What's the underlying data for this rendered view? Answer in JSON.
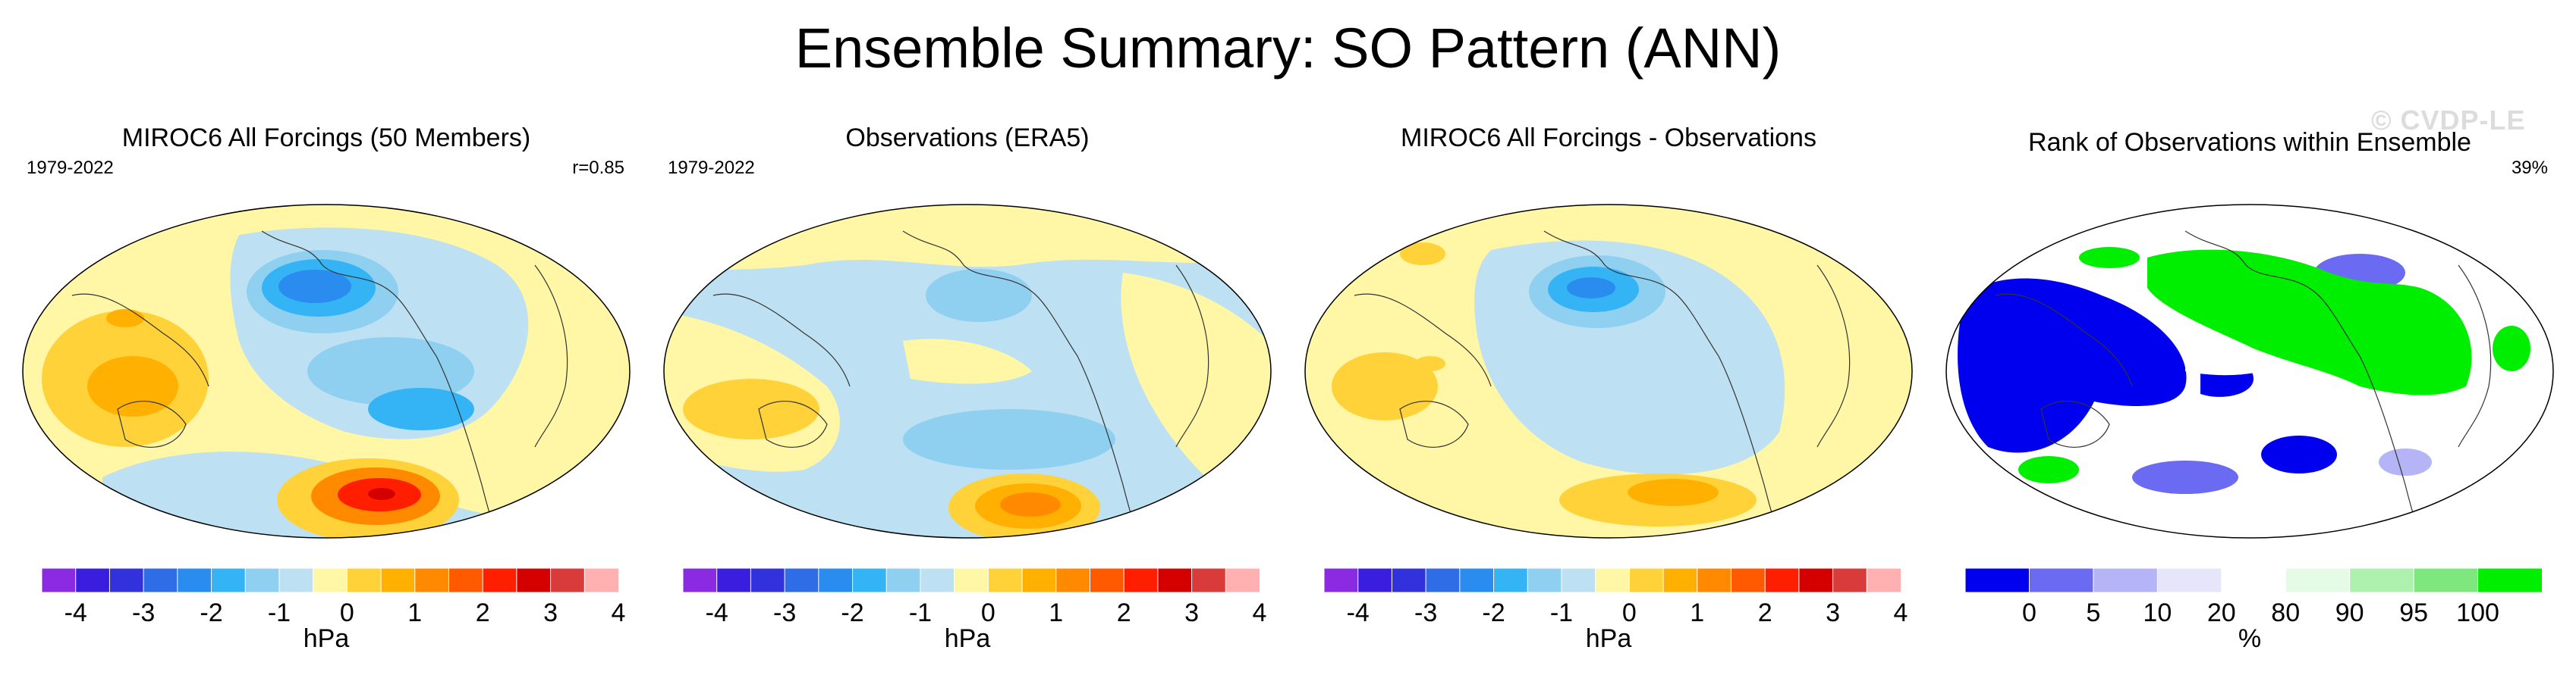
{
  "page": {
    "title": "Ensemble Summary: SO Pattern (ANN)",
    "watermark": "© CVDP-LE"
  },
  "panels": [
    {
      "title": "MIROC6 All Forcings (50 Members)",
      "left_label": "1979-2022",
      "right_label": "r=0.85",
      "colorbar": {
        "units": "hPa",
        "tick_labels": [
          "-4",
          "-3",
          "-2",
          "-1",
          "0",
          "1",
          "2",
          "3",
          "4"
        ],
        "colors": [
          "#8a2be2",
          "#3a1ee0",
          "#3232dc",
          "#2f6de6",
          "#2b8cf0",
          "#34b4f5",
          "#8fcff0",
          "#bde0f2",
          "#fff7a6",
          "#ffd23a",
          "#ffb000",
          "#ff8a00",
          "#ff5a00",
          "#ff1e00",
          "#d40000",
          "#d93a3a",
          "#ffb1b1"
        ]
      }
    },
    {
      "title": "Observations (ERA5)",
      "left_label": "1979-2022",
      "right_label": "",
      "colorbar": {
        "units": "hPa",
        "tick_labels": [
          "-4",
          "-3",
          "-2",
          "-1",
          "0",
          "1",
          "2",
          "3",
          "4"
        ],
        "colors": [
          "#8a2be2",
          "#3a1ee0",
          "#3232dc",
          "#2f6de6",
          "#2b8cf0",
          "#34b4f5",
          "#8fcff0",
          "#bde0f2",
          "#fff7a6",
          "#ffd23a",
          "#ffb000",
          "#ff8a00",
          "#ff5a00",
          "#ff1e00",
          "#d40000",
          "#d93a3a",
          "#ffb1b1"
        ]
      }
    },
    {
      "title": "MIROC6 All Forcings - Observations",
      "left_label": "",
      "right_label": "",
      "colorbar": {
        "units": "hPa",
        "tick_labels": [
          "-4",
          "-3",
          "-2",
          "-1",
          "0",
          "1",
          "2",
          "3",
          "4"
        ],
        "colors": [
          "#8a2be2",
          "#3a1ee0",
          "#3232dc",
          "#2f6de6",
          "#2b8cf0",
          "#34b4f5",
          "#8fcff0",
          "#bde0f2",
          "#fff7a6",
          "#ffd23a",
          "#ffb000",
          "#ff8a00",
          "#ff5a00",
          "#ff1e00",
          "#d40000",
          "#d93a3a",
          "#ffb1b1"
        ]
      }
    },
    {
      "title": "Rank of Observations within Ensemble",
      "left_label": "",
      "right_label": "39%",
      "colorbar": {
        "units": "%",
        "tick_labels": [
          "0",
          "5",
          "10",
          "20",
          "80",
          "90",
          "95",
          "100"
        ],
        "colors": [
          "#0000ee",
          "#6a6af2",
          "#b4b4f7",
          "#e6e6fb",
          "#ffffff",
          "#e6fbe6",
          "#aef0ae",
          "#7ee87e",
          "#00ee00"
        ]
      }
    }
  ]
}
